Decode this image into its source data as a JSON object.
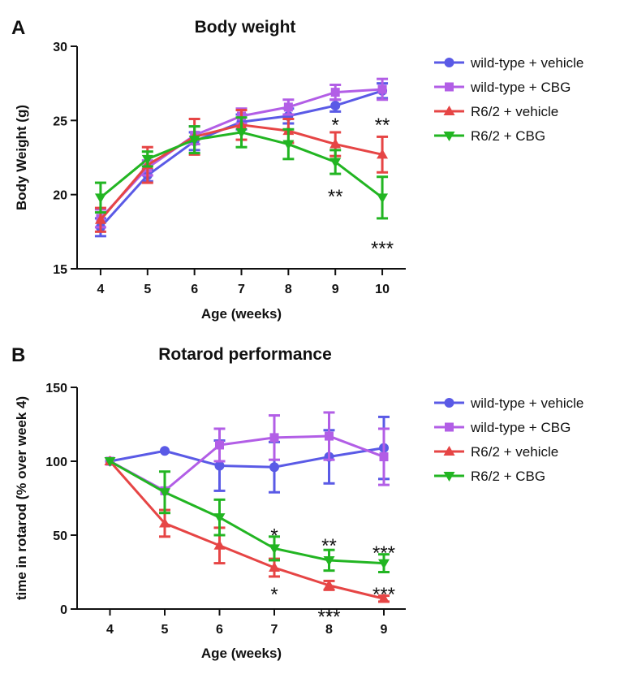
{
  "chart_data": [
    {
      "type": "line",
      "panel": "A",
      "title": "Body weight",
      "xlabel": "Age (weeks)",
      "ylabel": "Body Weight (g)",
      "x": [
        4,
        5,
        6,
        7,
        8,
        9,
        10
      ],
      "xlim": [
        3.5,
        10.5
      ],
      "ylim": [
        15,
        30
      ],
      "yticks": [
        15,
        20,
        25,
        30
      ],
      "grid": false,
      "legend_position": "right",
      "series": [
        {
          "name": "wild-type + vehicle",
          "color": "#5a5ae6",
          "marker": "circle",
          "values": [
            17.8,
            21.3,
            23.6,
            24.9,
            25.3,
            26.0,
            27.0
          ],
          "errors": [
            0.6,
            0.4,
            0.6,
            0.5,
            0.5,
            0.4,
            0.5
          ]
        },
        {
          "name": "wild-type + CBG",
          "color": "#b25ee6",
          "marker": "square",
          "values": [
            18.4,
            21.8,
            24.0,
            25.3,
            25.9,
            26.9,
            27.1
          ],
          "errors": [
            0.6,
            0.5,
            0.6,
            0.5,
            0.5,
            0.5,
            0.7
          ]
        },
        {
          "name": "R6/2 + vehicle",
          "color": "#e64545",
          "marker": "triangle-up",
          "values": [
            18.3,
            22.0,
            23.9,
            24.7,
            24.3,
            23.4,
            22.7
          ],
          "errors": [
            0.8,
            1.2,
            1.2,
            1.0,
            0.8,
            0.8,
            1.2
          ]
        },
        {
          "name": "R6/2 + CBG",
          "color": "#22b522",
          "marker": "triangle-down",
          "values": [
            19.8,
            22.4,
            23.7,
            24.2,
            23.4,
            22.2,
            19.8
          ],
          "errors": [
            1.0,
            0.5,
            0.9,
            1.0,
            1.0,
            0.8,
            1.4
          ]
        }
      ],
      "annotations": [
        {
          "text": "*",
          "x": 9,
          "y": 24.9
        },
        {
          "text": "**",
          "x": 10,
          "y": 24.9
        },
        {
          "text": "**",
          "x": 9,
          "y": 20.1
        },
        {
          "text": "***",
          "x": 10,
          "y": 16.6
        }
      ]
    },
    {
      "type": "line",
      "panel": "B",
      "title": "Rotarod performance",
      "xlabel": "Age (weeks)",
      "ylabel": "time in rotarod (% over week 4)",
      "x": [
        4,
        5,
        6,
        7,
        8,
        9
      ],
      "xlim": [
        3.4,
        9.4
      ],
      "ylim": [
        0,
        150
      ],
      "yticks": [
        0,
        50,
        100,
        150
      ],
      "grid": false,
      "legend_position": "right",
      "series": [
        {
          "name": "wild-type + vehicle",
          "color": "#5a5ae6",
          "marker": "circle",
          "values": [
            100,
            107,
            97,
            96,
            103,
            109
          ],
          "errors": [
            0,
            0,
            17,
            17,
            18,
            21
          ]
        },
        {
          "name": "wild-type + CBG",
          "color": "#b25ee6",
          "marker": "square",
          "values": [
            100,
            80,
            111,
            116,
            117,
            103
          ],
          "errors": [
            0,
            0,
            11,
            15,
            16,
            19
          ]
        },
        {
          "name": "R6/2 + vehicle",
          "color": "#e64545",
          "marker": "triangle-up",
          "values": [
            100,
            58,
            43,
            28,
            16,
            7
          ],
          "errors": [
            0,
            9,
            12,
            6,
            3,
            2
          ]
        },
        {
          "name": "R6/2 + CBG",
          "color": "#22b522",
          "marker": "triangle-down",
          "values": [
            100,
            79,
            62,
            41,
            33,
            31
          ],
          "errors": [
            0,
            14,
            12,
            8,
            7,
            6
          ]
        }
      ],
      "annotations": [
        {
          "text": "*",
          "x": 7,
          "y": 52
        },
        {
          "text": "**",
          "x": 8,
          "y": 45
        },
        {
          "text": "***",
          "x": 9,
          "y": 40
        },
        {
          "text": "*",
          "x": 7,
          "y": 12
        },
        {
          "text": "***",
          "x": 8,
          "y": -3
        },
        {
          "text": "***",
          "x": 9,
          "y": 12
        }
      ]
    }
  ]
}
